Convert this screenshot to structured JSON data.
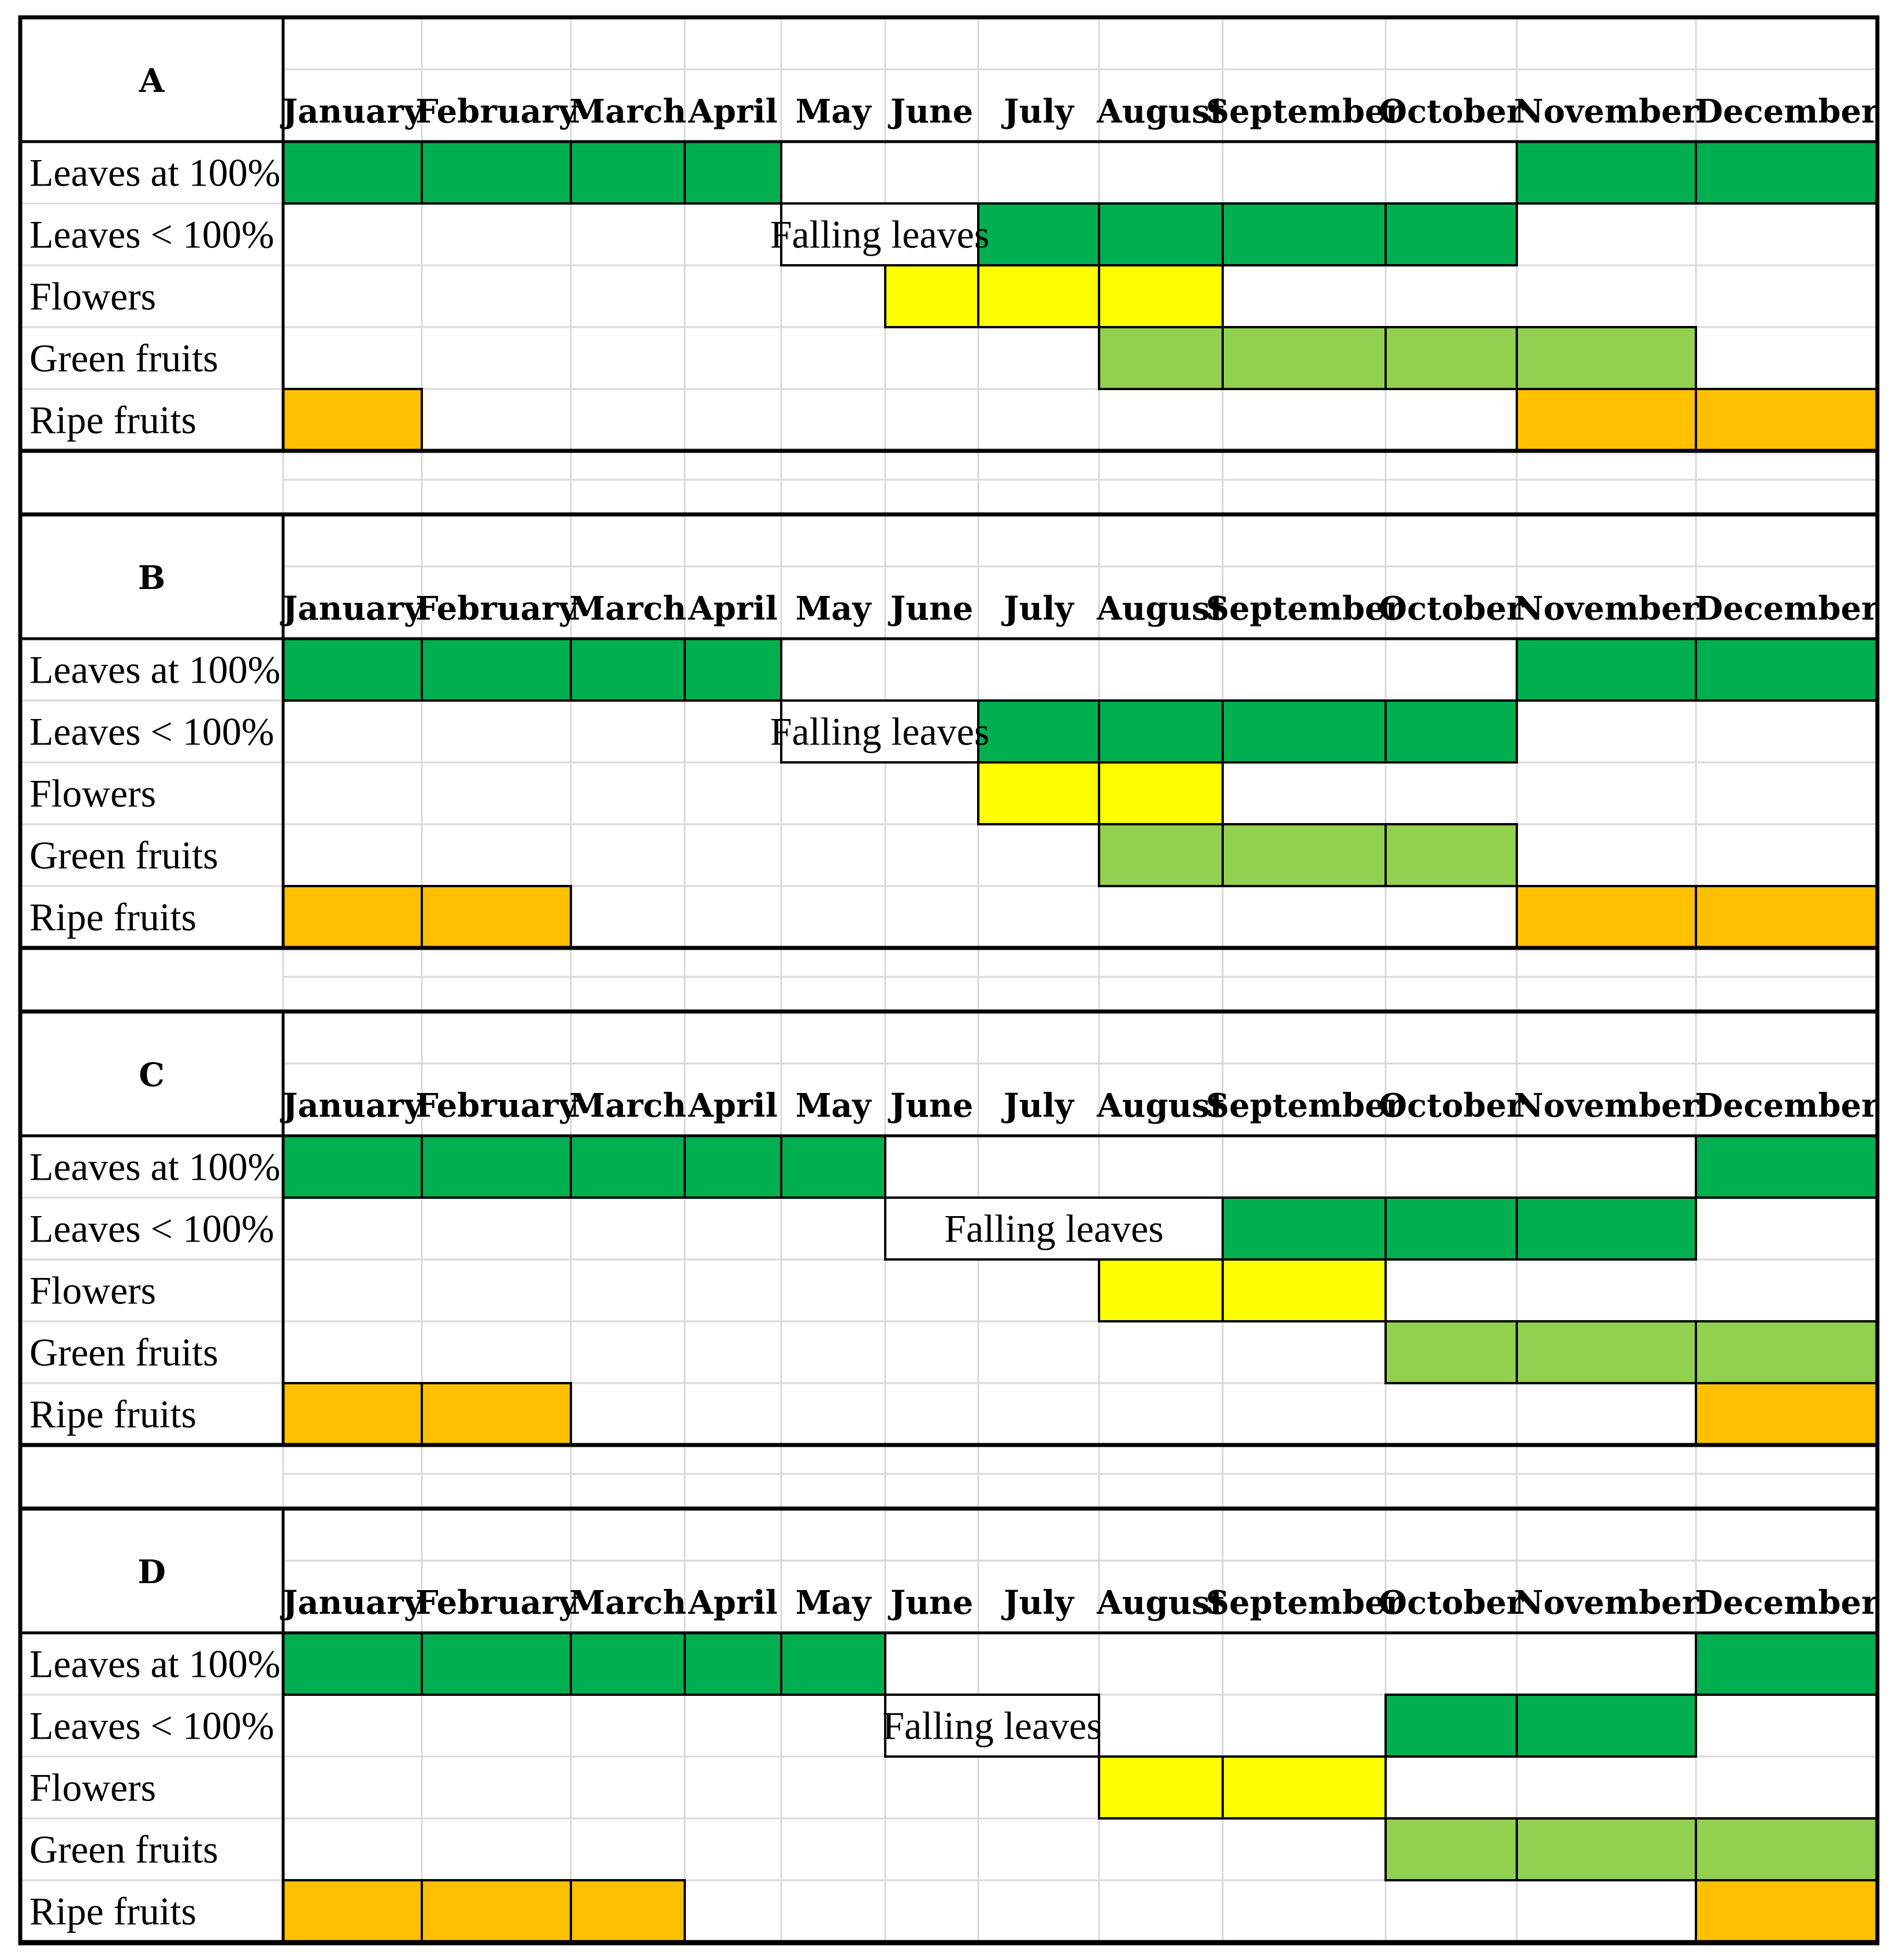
{
  "chart_data": {
    "type": "table",
    "months": [
      "January",
      "February",
      "March",
      "April",
      "May",
      "June",
      "July",
      "August",
      "September",
      "October",
      "November",
      "December"
    ],
    "rows": [
      "Leaves at 100%",
      "Leaves < 100%",
      "Flowers",
      "Green fruits",
      "Ripe fruits"
    ],
    "colors": {
      "leaves": "#00b050",
      "flowers": "#ffff00",
      "green_fruits": "#92d050",
      "ripe_fruits": "#ffc000",
      "grid": "#d9d9d9",
      "border": "#000000"
    },
    "panels": [
      {
        "label": "A",
        "rows": {
          "Leaves at 100%": [
            1,
            2,
            3,
            4,
            11,
            12
          ],
          "Leaves < 100%": [
            7,
            8,
            9,
            10
          ],
          "Flowers": [
            6,
            7,
            8
          ],
          "Green fruits": [
            8,
            9,
            10,
            11
          ],
          "Ripe fruits": [
            1,
            11,
            12
          ]
        },
        "falling_leaves": {
          "text": "Falling leaves",
          "months": [
            5,
            6
          ]
        }
      },
      {
        "label": "B",
        "rows": {
          "Leaves at 100%": [
            1,
            2,
            3,
            4,
            11,
            12
          ],
          "Leaves < 100%": [
            7,
            8,
            9,
            10
          ],
          "Flowers": [
            7,
            8
          ],
          "Green fruits": [
            8,
            9,
            10
          ],
          "Ripe fruits": [
            1,
            2,
            11,
            12
          ]
        },
        "falling_leaves": {
          "text": "Falling leaves",
          "months": [
            5,
            6
          ]
        }
      },
      {
        "label": "C",
        "rows": {
          "Leaves at 100%": [
            1,
            2,
            3,
            4,
            5,
            12
          ],
          "Leaves < 100%": [
            9,
            10,
            11
          ],
          "Flowers": [
            8,
            9
          ],
          "Green fruits": [
            10,
            11,
            12
          ],
          "Ripe fruits": [
            1,
            2,
            12
          ]
        },
        "falling_leaves": {
          "text": "Falling leaves",
          "months": [
            6,
            7,
            8
          ]
        }
      },
      {
        "label": "D",
        "rows": {
          "Leaves at 100%": [
            1,
            2,
            3,
            4,
            5,
            12
          ],
          "Leaves < 100%": [
            10,
            11
          ],
          "Flowers": [
            8,
            9
          ],
          "Green fruits": [
            10,
            11,
            12
          ],
          "Ripe fruits": [
            1,
            2,
            3,
            12
          ]
        },
        "falling_leaves": {
          "text": "Falling leaves",
          "months": [
            6,
            7
          ]
        }
      }
    ]
  }
}
